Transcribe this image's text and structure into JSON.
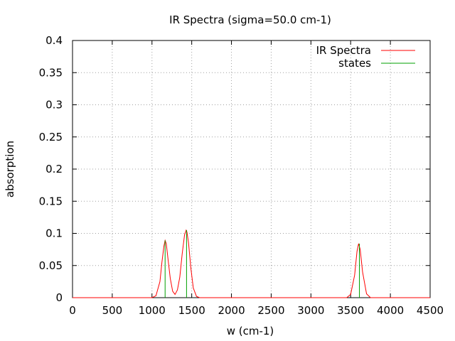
{
  "chart_data": {
    "type": "line",
    "title": "IR Spectra (sigma=50.0 cm-1)",
    "xlabel": "w (cm-1)",
    "ylabel": "absorption",
    "xlim": [
      0,
      4500
    ],
    "ylim": [
      0,
      0.4
    ],
    "xticks": [
      0,
      500,
      1000,
      1500,
      2000,
      2500,
      3000,
      3500,
      4000,
      4500
    ],
    "xtick_labels": [
      "0",
      "500",
      "1000",
      "1500",
      "2000",
      "2500",
      "3000",
      "3500",
      "4000",
      "4500"
    ],
    "yticks": [
      0,
      0.05,
      0.1,
      0.15,
      0.2,
      0.25,
      0.3,
      0.35,
      0.4
    ],
    "ytick_labels": [
      "0",
      "0.05",
      "0.1",
      "0.15",
      "0.2",
      "0.25",
      "0.3",
      "0.35",
      "0.4"
    ],
    "grid": true,
    "legend_position": "top-right",
    "series": [
      {
        "name": "IR Spectra",
        "color": "#ff0000",
        "kind": "line",
        "x": [
          1000,
          1050,
          1100,
          1125,
          1150,
          1165,
          1180,
          1200,
          1230,
          1260,
          1290,
          1320,
          1350,
          1380,
          1410,
          1430,
          1440,
          1460,
          1490,
          1520,
          1560,
          1600,
          3450,
          3500,
          3550,
          3580,
          3600,
          3620,
          3650,
          3700,
          3750
        ],
        "y": [
          0,
          0.003,
          0.025,
          0.055,
          0.08,
          0.089,
          0.084,
          0.062,
          0.03,
          0.01,
          0.005,
          0.012,
          0.032,
          0.068,
          0.098,
          0.105,
          0.102,
          0.085,
          0.045,
          0.015,
          0.002,
          0,
          0,
          0.005,
          0.035,
          0.072,
          0.084,
          0.075,
          0.04,
          0.006,
          0
        ]
      },
      {
        "name": "states",
        "color": "#00a000",
        "kind": "sticks",
        "x": [
          1165,
          1435,
          3610
        ],
        "y": [
          0.089,
          0.105,
          0.084
        ]
      }
    ]
  }
}
